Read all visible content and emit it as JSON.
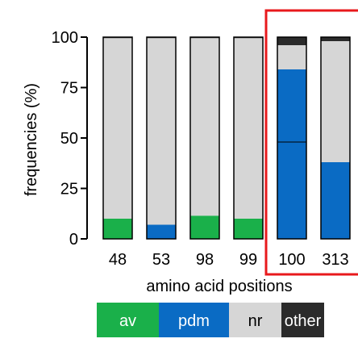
{
  "chart_data": {
    "type": "stacked_bar",
    "xlabel": "amino acid positions",
    "ylabel": "frequencies (%)",
    "ylim": [
      0,
      100
    ],
    "yticks": [
      "0",
      "25",
      "50",
      "75",
      "100"
    ],
    "categories": [
      "48",
      "53",
      "98",
      "99",
      "100",
      "313"
    ],
    "series": [
      {
        "name": "av",
        "color": "#1ab04a",
        "values": [
          10,
          0,
          11.5,
          10,
          0,
          0
        ]
      },
      {
        "name": "pdm",
        "color": "#0a6bc4",
        "values": [
          0,
          7,
          0,
          0,
          84,
          38
        ]
      },
      {
        "name": "nr",
        "color": "#d6d6d6",
        "values": [
          89.5,
          92.5,
          88,
          89.5,
          12,
          60
        ]
      },
      {
        "name": "other",
        "color": "#2b2b2b",
        "values": [
          0.5,
          0.5,
          0.5,
          0.5,
          4,
          2
        ]
      }
    ],
    "divider_lines": [
      {
        "category": "100",
        "y": 48
      }
    ],
    "highlight": {
      "categories": [
        "100",
        "313"
      ],
      "color": "#e8191c"
    },
    "grid": false,
    "legend_placement": "bottom"
  }
}
